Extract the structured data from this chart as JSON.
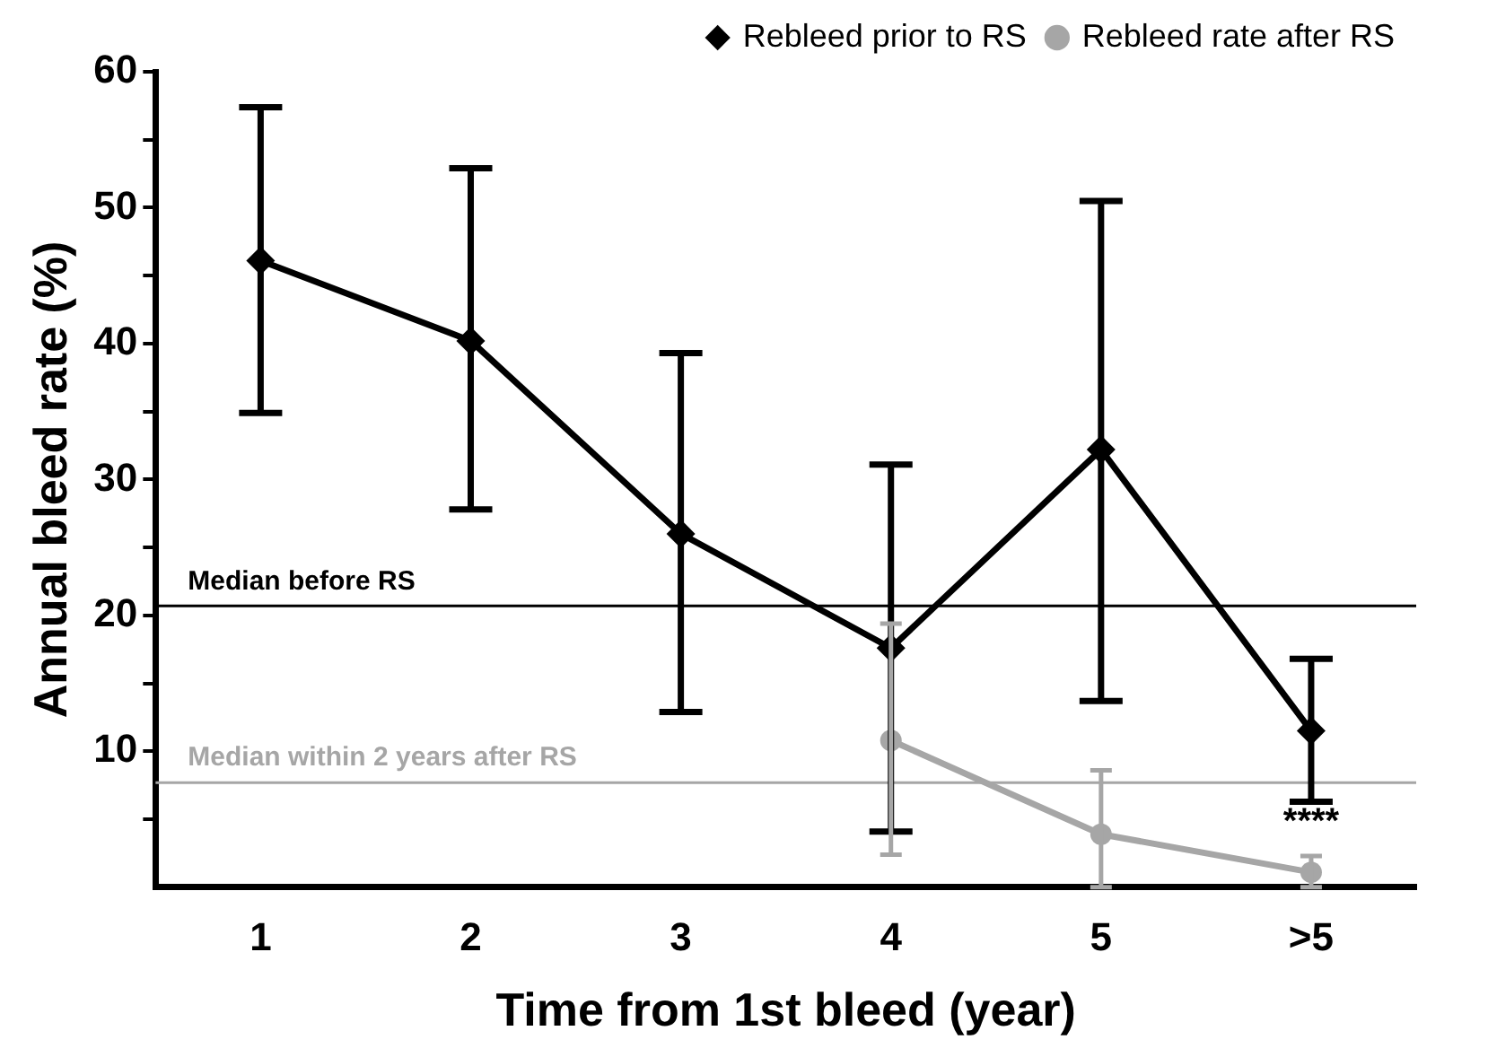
{
  "chart_data": {
    "type": "line",
    "xlabel": "Time from 1st bleed (year)",
    "ylabel": "Annual bleed rate (%)",
    "categories": [
      "1",
      "2",
      "3",
      "4",
      "5",
      ">5"
    ],
    "series": [
      {
        "name": "Rebleed prior to RS",
        "color": "#000000",
        "marker": "diamond",
        "values": [
          46.1,
          40.2,
          26.0,
          17.6,
          32.2,
          11.5
        ],
        "errors": [
          [
            34.9,
            57.4
          ],
          [
            27.8,
            52.9
          ],
          [
            12.9,
            39.3
          ],
          [
            4.1,
            31.1
          ],
          [
            13.7,
            50.5
          ],
          [
            6.3,
            16.8
          ]
        ]
      },
      {
        "name": "Rebleed rate after RS",
        "color": "#a6a6a6",
        "marker": "circle",
        "values": [
          null,
          null,
          null,
          10.8,
          3.9,
          1.1
        ],
        "errors": [
          null,
          null,
          null,
          [
            2.4,
            19.4
          ],
          [
            0,
            8.6
          ],
          [
            0,
            2.3
          ]
        ]
      }
    ],
    "ylim": [
      0,
      60
    ],
    "yticks": [
      {
        "value": 5,
        "label": null
      },
      10,
      {
        "value": 15,
        "label": null
      },
      20,
      {
        "value": 25,
        "label": null
      },
      30,
      {
        "value": 35,
        "label": null
      },
      40,
      {
        "value": 45,
        "label": null
      },
      50,
      {
        "value": 55,
        "label": null
      },
      60
    ],
    "ref_lines": [
      {
        "axis": "y",
        "value": 20.7,
        "label": "Median before RS",
        "color": "#000000"
      },
      {
        "axis": "y",
        "value": 7.7,
        "label": "Median within 2 years after RS",
        "color": "#a6a6a6"
      }
    ],
    "annotations": [
      "****"
    ],
    "grid": false,
    "legend": "top right",
    "line_style": "solid"
  }
}
